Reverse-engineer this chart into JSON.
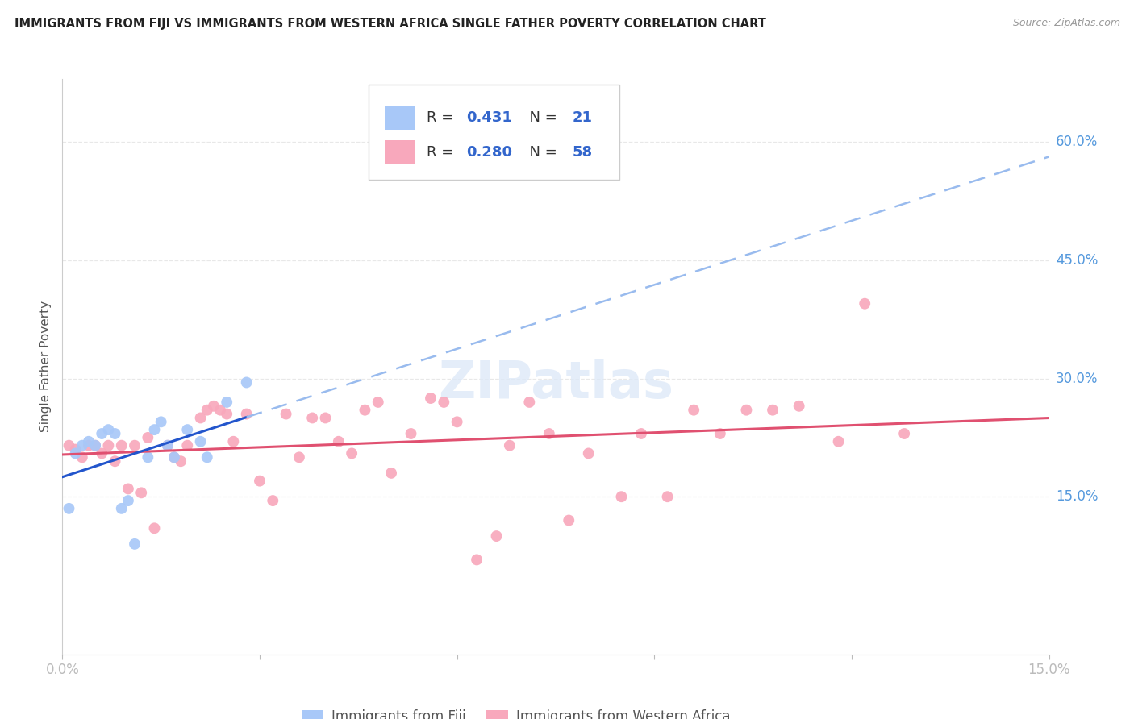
{
  "title": "IMMIGRANTS FROM FIJI VS IMMIGRANTS FROM WESTERN AFRICA SINGLE FATHER POVERTY CORRELATION CHART",
  "source": "Source: ZipAtlas.com",
  "ylabel": "Single Father Poverty",
  "fiji_label": "Immigrants from Fiji",
  "wa_label": "Immigrants from Western Africa",
  "fiji_R": 0.431,
  "fiji_N": 21,
  "wa_R": 0.28,
  "wa_N": 58,
  "xlim": [
    0.0,
    0.15
  ],
  "ylim": [
    -0.05,
    0.68
  ],
  "xtick_positions": [
    0.0,
    0.03,
    0.06,
    0.09,
    0.12,
    0.15
  ],
  "xticklabels": [
    "0.0%",
    "",
    "",
    "",
    "",
    "15.0%"
  ],
  "ytick_positions": [
    0.15,
    0.3,
    0.45,
    0.6
  ],
  "yticklabels": [
    "15.0%",
    "30.0%",
    "45.0%",
    "60.0%"
  ],
  "fiji_color": "#a8c8f8",
  "wa_color": "#f8a8bc",
  "fiji_line_color": "#2255cc",
  "wa_line_color": "#e05070",
  "fiji_dash_color": "#99bbee",
  "bg_color": "#ffffff",
  "grid_color": "#e8e8e8",
  "fiji_x": [
    0.001,
    0.002,
    0.003,
    0.004,
    0.005,
    0.006,
    0.007,
    0.008,
    0.009,
    0.01,
    0.011,
    0.013,
    0.014,
    0.015,
    0.016,
    0.017,
    0.019,
    0.021,
    0.022,
    0.025,
    0.028
  ],
  "fiji_y": [
    0.135,
    0.205,
    0.215,
    0.22,
    0.215,
    0.23,
    0.235,
    0.23,
    0.135,
    0.145,
    0.09,
    0.2,
    0.235,
    0.245,
    0.215,
    0.2,
    0.235,
    0.22,
    0.2,
    0.27,
    0.295
  ],
  "wa_x": [
    0.001,
    0.002,
    0.003,
    0.004,
    0.005,
    0.006,
    0.007,
    0.008,
    0.009,
    0.01,
    0.011,
    0.012,
    0.013,
    0.014,
    0.016,
    0.017,
    0.018,
    0.019,
    0.021,
    0.022,
    0.023,
    0.024,
    0.025,
    0.026,
    0.028,
    0.03,
    0.032,
    0.034,
    0.036,
    0.038,
    0.04,
    0.042,
    0.044,
    0.046,
    0.048,
    0.05,
    0.053,
    0.056,
    0.058,
    0.06,
    0.063,
    0.066,
    0.068,
    0.071,
    0.074,
    0.077,
    0.08,
    0.085,
    0.088,
    0.092,
    0.096,
    0.1,
    0.104,
    0.108,
    0.112,
    0.118,
    0.122,
    0.128
  ],
  "wa_y": [
    0.215,
    0.21,
    0.2,
    0.215,
    0.215,
    0.205,
    0.215,
    0.195,
    0.215,
    0.16,
    0.215,
    0.155,
    0.225,
    0.11,
    0.215,
    0.2,
    0.195,
    0.215,
    0.25,
    0.26,
    0.265,
    0.26,
    0.255,
    0.22,
    0.255,
    0.17,
    0.145,
    0.255,
    0.2,
    0.25,
    0.25,
    0.22,
    0.205,
    0.26,
    0.27,
    0.18,
    0.23,
    0.275,
    0.27,
    0.245,
    0.07,
    0.1,
    0.215,
    0.27,
    0.23,
    0.12,
    0.205,
    0.15,
    0.23,
    0.15,
    0.26,
    0.23,
    0.26,
    0.26,
    0.265,
    0.22,
    0.395,
    0.23
  ]
}
